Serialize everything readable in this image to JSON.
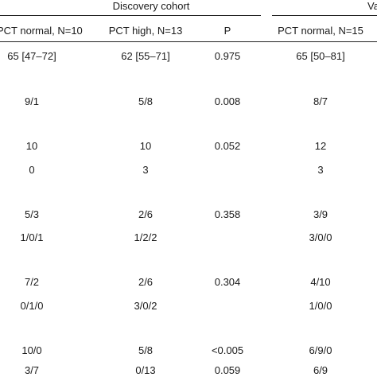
{
  "header": {
    "group1_label": "Discovery cohort",
    "group2_label_partial": "Va"
  },
  "columns": [
    "PCT normal, N=10",
    "PCT high, N=13",
    "P",
    "PCT normal, N=15"
  ],
  "rows": [
    [
      "65 [47–72]",
      "62 [55–71]",
      "0.975",
      "65 [50–81]"
    ],
    [
      "9/1",
      "5/8",
      "0.008",
      "8/7"
    ],
    [
      "10",
      "10",
      "0.052",
      "12"
    ],
    [
      "0",
      "3",
      "",
      "3"
    ],
    [
      "5/3",
      "2/6",
      "0.358",
      "3/9"
    ],
    [
      "1/0/1",
      "1/2/2",
      "",
      "3/0/0"
    ],
    [
      "7/2",
      "2/6",
      "0.304",
      "4/10"
    ],
    [
      "0/1/0",
      "3/0/2",
      "",
      "1/0/0"
    ],
    [
      "10/0",
      "5/8",
      "<0.005",
      "6/9/0"
    ],
    [
      "3/7",
      "0/13",
      "0.059",
      "6/9"
    ]
  ]
}
